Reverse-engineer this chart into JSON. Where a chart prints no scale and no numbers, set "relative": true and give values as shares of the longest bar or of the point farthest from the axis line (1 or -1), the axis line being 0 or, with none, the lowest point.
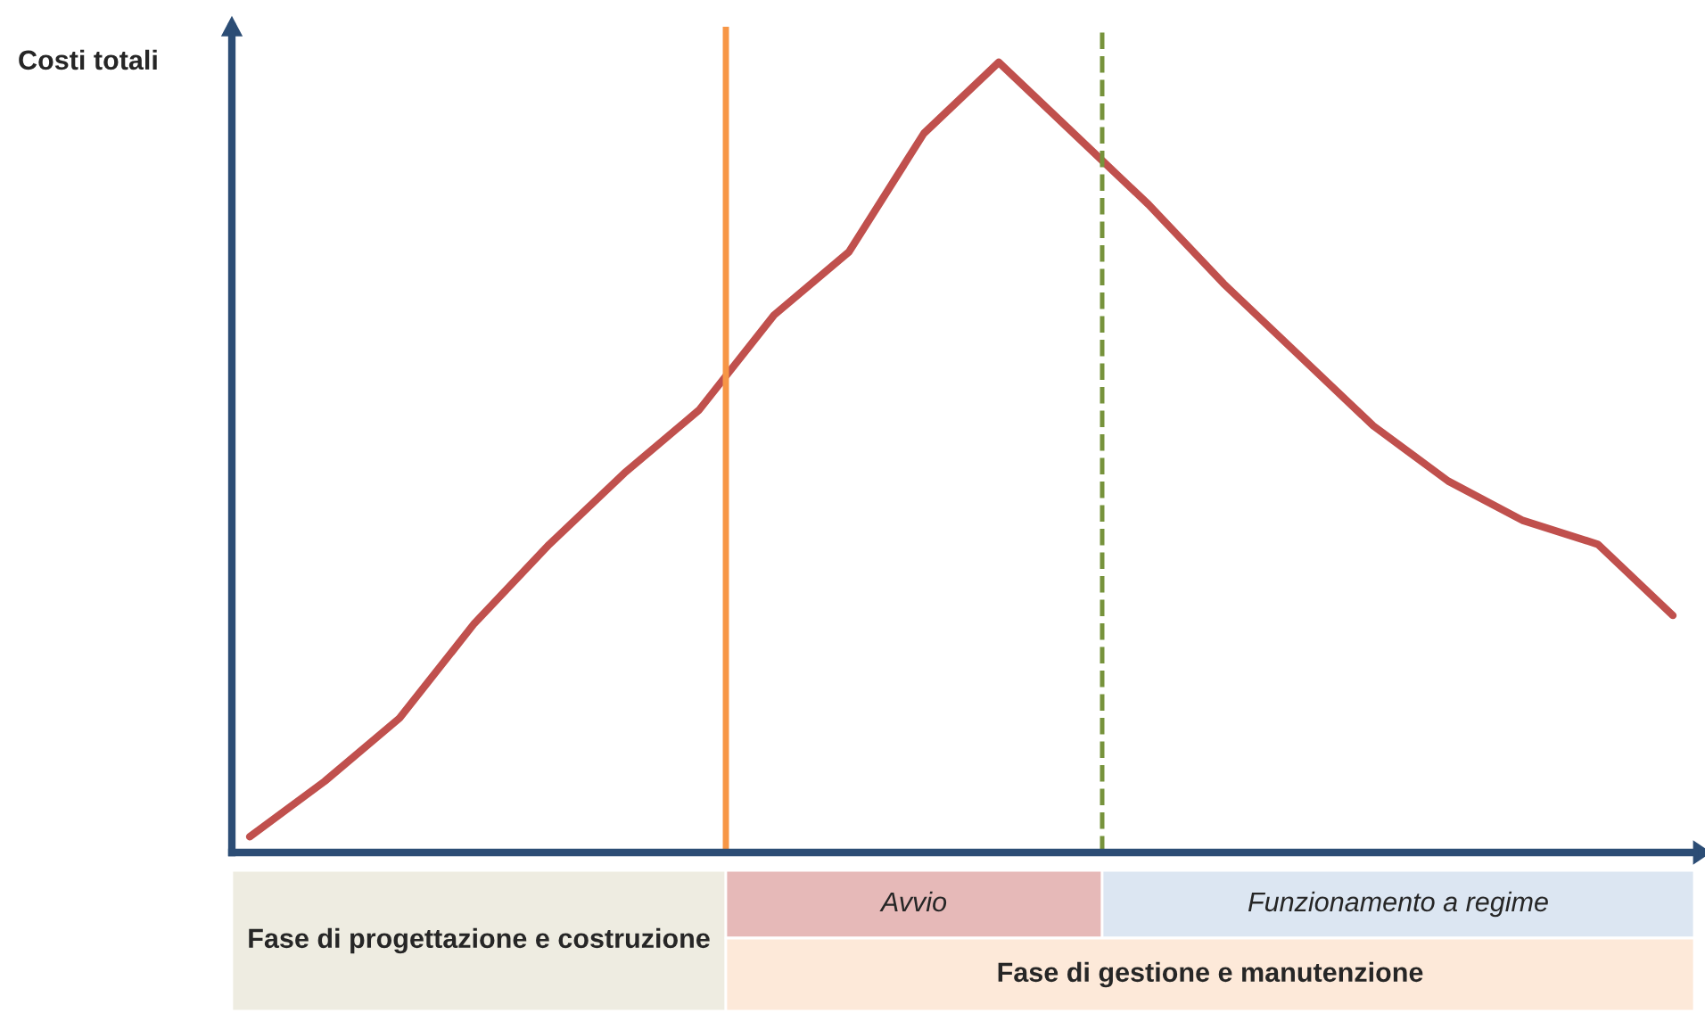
{
  "chart_data": {
    "type": "line",
    "relative": true,
    "ylabel": "Costi totali",
    "categories": [
      null,
      null,
      null,
      null,
      null,
      null,
      null,
      null,
      null,
      null,
      null,
      null,
      null,
      null,
      null,
      null,
      null,
      null,
      null,
      null
    ],
    "marker": "none",
    "line_style": "solid",
    "series": [
      {
        "color": "#c0504d",
        "values": [
          0.02,
          0.09,
          0.17,
          0.29,
          0.39,
          0.48,
          0.56,
          0.68,
          0.76,
          0.91,
          1,
          0.91,
          0.82,
          0.72,
          0.63,
          0.54,
          0.47,
          0.42,
          0.39,
          0.3
        ]
      }
    ],
    "annotations": [
      "Fase di progettazione e costruzione",
      "Avvio",
      "Funzionamento a regime",
      "Fase di gestione e manutenzione"
    ]
  }
}
